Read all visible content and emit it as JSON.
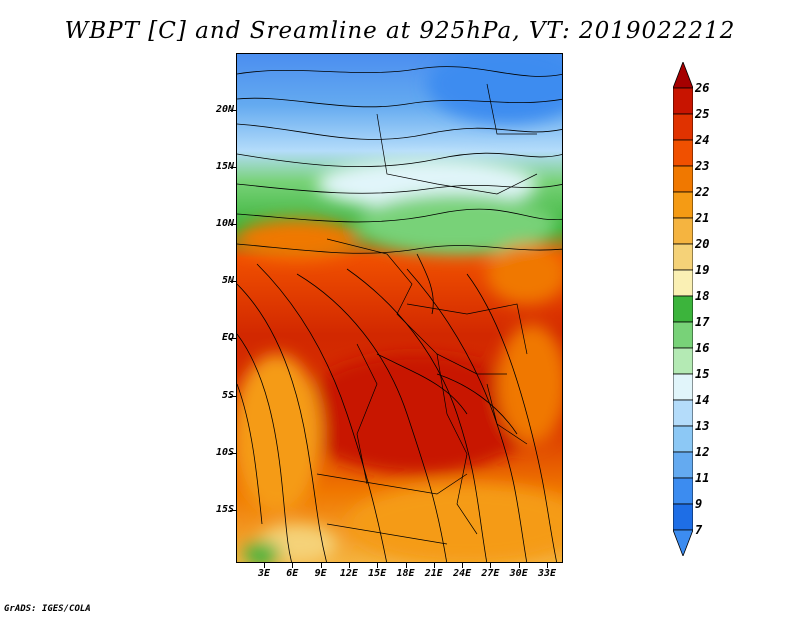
{
  "title": "WBPT [C] and Sreamline at 925hPa, VT: 2019022212",
  "credit": "GrADS: IGES/COLA",
  "map": {
    "lat_labels": [
      "20N",
      "15N",
      "10N",
      "5N",
      "EQ",
      "5S",
      "10S",
      "15S"
    ],
    "lon_labels": [
      "3E",
      "6E",
      "9E",
      "12E",
      "15E",
      "18E",
      "21E",
      "24E",
      "27E",
      "30E",
      "33E"
    ]
  },
  "colorbar": {
    "levels": [
      "26",
      "25",
      "24",
      "23",
      "22",
      "21",
      "20",
      "19",
      "18",
      "17",
      "16",
      "15",
      "14",
      "13",
      "12",
      "11",
      "9",
      "7"
    ],
    "colors": [
      "#a50000",
      "#c81400",
      "#e03200",
      "#f05000",
      "#f07800",
      "#f59b14",
      "#f5b440",
      "#f5d278",
      "#faf0b4",
      "#3cb43c",
      "#78d278",
      "#b4eab4",
      "#e1f5fa",
      "#b4dcfa",
      "#8cc8f5",
      "#64aaf0",
      "#3c8cf0",
      "#1e6ee6",
      "#3c8cf0"
    ]
  }
}
